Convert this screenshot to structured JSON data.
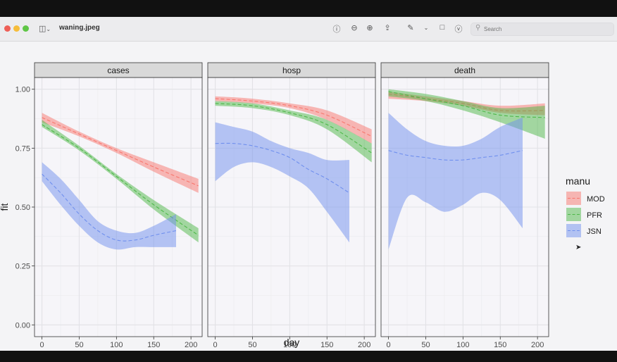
{
  "window": {
    "title": "waning.jpeg",
    "search_placeholder": "Search",
    "toolbar_icons": [
      "sidebar-icon",
      "chevron-down-icon",
      "info-icon",
      "zoom-out-icon",
      "zoom-in-icon",
      "share-icon",
      "markup-pen-icon",
      "chevron-down-icon",
      "rotate-icon",
      "annotate-icon",
      "search-icon"
    ]
  },
  "chart_data": {
    "type": "line",
    "facet_by": "outcome",
    "panels": [
      "cases",
      "hosp",
      "death"
    ],
    "xlabel": "day",
    "ylabel": "fit",
    "xlim": [
      -10,
      215
    ],
    "ylim": [
      -0.05,
      1.05
    ],
    "xticks": [
      0,
      50,
      100,
      150,
      200
    ],
    "yticks": [
      0.0,
      0.25,
      0.5,
      0.75,
      1.0
    ],
    "ytick_labels": [
      "0.00",
      "0.25",
      "0.50",
      "0.75",
      "1.00"
    ],
    "grid": true,
    "legend": {
      "title": "manu",
      "position": "right",
      "entries": [
        "MOD",
        "PFR",
        "JSN"
      ]
    },
    "colors": {
      "MOD": "#F8766D",
      "PFR": "#4DB848",
      "JSN": "#7090EE"
    },
    "series": [
      {
        "panel": "cases",
        "name": "MOD",
        "x": [
          0,
          50,
          100,
          150,
          210
        ],
        "fit": [
          0.88,
          0.81,
          0.74,
          0.67,
          0.59
        ],
        "lower": [
          0.86,
          0.8,
          0.73,
          0.65,
          0.56
        ],
        "upper": [
          0.9,
          0.82,
          0.75,
          0.69,
          0.62
        ]
      },
      {
        "panel": "cases",
        "name": "PFR",
        "x": [
          0,
          50,
          100,
          150,
          210
        ],
        "fit": [
          0.85,
          0.75,
          0.63,
          0.51,
          0.38
        ],
        "lower": [
          0.84,
          0.74,
          0.62,
          0.49,
          0.35
        ],
        "upper": [
          0.87,
          0.76,
          0.64,
          0.53,
          0.41
        ]
      },
      {
        "panel": "cases",
        "name": "JSN",
        "x": [
          0,
          25,
          50,
          75,
          100,
          125,
          150,
          180
        ],
        "fit": [
          0.64,
          0.56,
          0.47,
          0.4,
          0.36,
          0.36,
          0.38,
          0.4
        ],
        "lower": [
          0.61,
          0.51,
          0.42,
          0.35,
          0.32,
          0.33,
          0.33,
          0.33
        ],
        "upper": [
          0.69,
          0.62,
          0.53,
          0.44,
          0.4,
          0.39,
          0.42,
          0.47
        ]
      },
      {
        "panel": "hosp",
        "name": "MOD",
        "x": [
          0,
          50,
          100,
          150,
          210
        ],
        "fit": [
          0.96,
          0.95,
          0.93,
          0.89,
          0.8
        ],
        "lower": [
          0.95,
          0.94,
          0.92,
          0.87,
          0.77
        ],
        "upper": [
          0.97,
          0.96,
          0.94,
          0.91,
          0.83
        ]
      },
      {
        "panel": "hosp",
        "name": "PFR",
        "x": [
          0,
          50,
          100,
          150,
          210
        ],
        "fit": [
          0.94,
          0.93,
          0.9,
          0.85,
          0.73
        ],
        "lower": [
          0.93,
          0.92,
          0.89,
          0.83,
          0.69
        ],
        "upper": [
          0.95,
          0.94,
          0.91,
          0.87,
          0.77
        ]
      },
      {
        "panel": "hosp",
        "name": "JSN",
        "x": [
          0,
          25,
          50,
          75,
          100,
          125,
          150,
          180
        ],
        "fit": [
          0.77,
          0.77,
          0.76,
          0.74,
          0.71,
          0.66,
          0.62,
          0.56
        ],
        "lower": [
          0.61,
          0.67,
          0.69,
          0.67,
          0.63,
          0.58,
          0.48,
          0.35
        ],
        "upper": [
          0.86,
          0.84,
          0.82,
          0.78,
          0.75,
          0.73,
          0.7,
          0.7
        ]
      },
      {
        "panel": "death",
        "name": "MOD",
        "x": [
          0,
          50,
          100,
          150,
          210
        ],
        "fit": [
          0.98,
          0.96,
          0.94,
          0.91,
          0.91
        ],
        "lower": [
          0.96,
          0.95,
          0.93,
          0.9,
          0.89
        ],
        "upper": [
          0.99,
          0.97,
          0.95,
          0.93,
          0.94
        ]
      },
      {
        "panel": "death",
        "name": "PFR",
        "x": [
          0,
          50,
          100,
          150,
          210
        ],
        "fit": [
          0.99,
          0.96,
          0.93,
          0.89,
          0.88
        ],
        "lower": [
          0.97,
          0.95,
          0.91,
          0.86,
          0.79
        ],
        "upper": [
          1.0,
          0.98,
          0.95,
          0.92,
          0.93
        ]
      },
      {
        "panel": "death",
        "name": "JSN",
        "x": [
          0,
          25,
          50,
          75,
          100,
          125,
          150,
          180
        ],
        "fit": [
          0.74,
          0.72,
          0.71,
          0.7,
          0.7,
          0.71,
          0.72,
          0.74
        ],
        "lower": [
          0.32,
          0.54,
          0.52,
          0.48,
          0.51,
          0.56,
          0.53,
          0.41
        ],
        "upper": [
          0.9,
          0.83,
          0.78,
          0.76,
          0.76,
          0.79,
          0.84,
          0.88
        ]
      }
    ]
  }
}
